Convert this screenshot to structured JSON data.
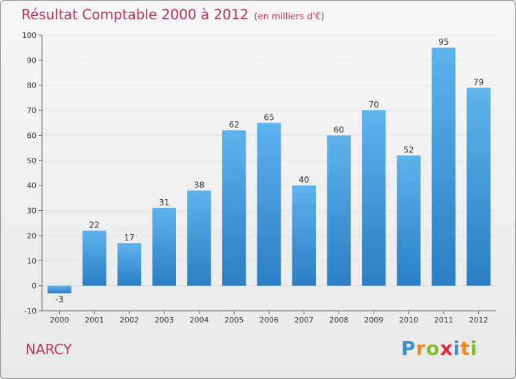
{
  "title": "Résultat Comptable 2000 à 2012",
  "subtitle": "(en milliers d'€)",
  "commune": "NARCY",
  "logo": {
    "letters": [
      "P",
      "r",
      "o",
      "x",
      "i",
      "t",
      "i"
    ]
  },
  "colors": {
    "title": "#c0325e",
    "bar_top": "#5eb3ec",
    "bar_bottom": "#2a7ec4",
    "gridline": "#d8d8d8",
    "axis": "#666666"
  },
  "chart_data": {
    "type": "bar",
    "title": "Résultat Comptable 2000 à 2012",
    "subtitle": "(en milliers d'€)",
    "categories": [
      "2000",
      "2001",
      "2002",
      "2003",
      "2004",
      "2005",
      "2006",
      "2007",
      "2008",
      "2009",
      "2010",
      "2011",
      "2012"
    ],
    "values": [
      -3,
      22,
      17,
      31,
      38,
      62,
      65,
      40,
      60,
      70,
      52,
      95,
      79
    ],
    "value_labels": [
      "-3",
      "22",
      "17",
      "31",
      "38",
      "62",
      "65",
      "40",
      "60",
      "70",
      "52",
      "95",
      "79"
    ],
    "yticks": [
      -10,
      0,
      10,
      20,
      30,
      40,
      50,
      60,
      70,
      80,
      90,
      100
    ],
    "ylim": [
      -10,
      100
    ],
    "xlabel": "",
    "ylabel": "",
    "grid": "horizontal"
  }
}
